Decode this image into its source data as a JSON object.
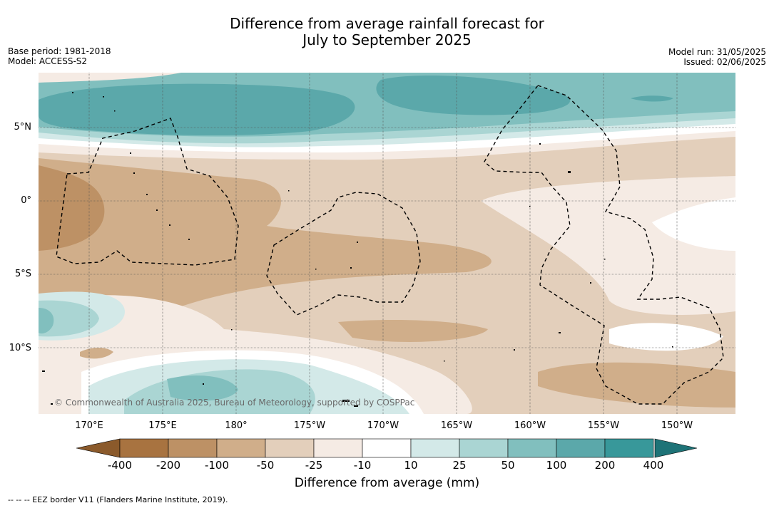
{
  "title_line1": "Difference from average rainfall forecast for",
  "title_line2": "July to September 2025",
  "base_period": "Base period: 1981-2018",
  "model": "Model: ACCESS-S2",
  "model_run": "Model run: 31/05/2025",
  "issued": "Issued: 02/06/2025",
  "credit": "© Commonwealth of Australia 2025, Bureau of Meteorology, supported by COSPPac",
  "footnote": "--  --  -- EEZ border V11 (Flanders Marine Institute, 2019).",
  "lat_labels": [
    "5°N",
    "0°",
    "5°S",
    "10°S"
  ],
  "lon_labels": [
    "170°E",
    "175°E",
    "180°",
    "175°W",
    "170°W",
    "165°W",
    "160°W",
    "155°W",
    "150°W"
  ],
  "colorbar": {
    "label": "Difference from average (mm)",
    "ticks": [
      "-400",
      "-200",
      "-100",
      "-50",
      "-25",
      "-10",
      "10",
      "25",
      "50",
      "100",
      "200",
      "400"
    ],
    "colors": [
      "#8b5a2b",
      "#a87340",
      "#bd9165",
      "#d0ae8a",
      "#e3cfbb",
      "#f5ebe4",
      "#ffffff",
      "#d3e9e8",
      "#aad5d3",
      "#81bfbe",
      "#5ba8aa",
      "#38989a",
      "#1e7377"
    ]
  }
}
